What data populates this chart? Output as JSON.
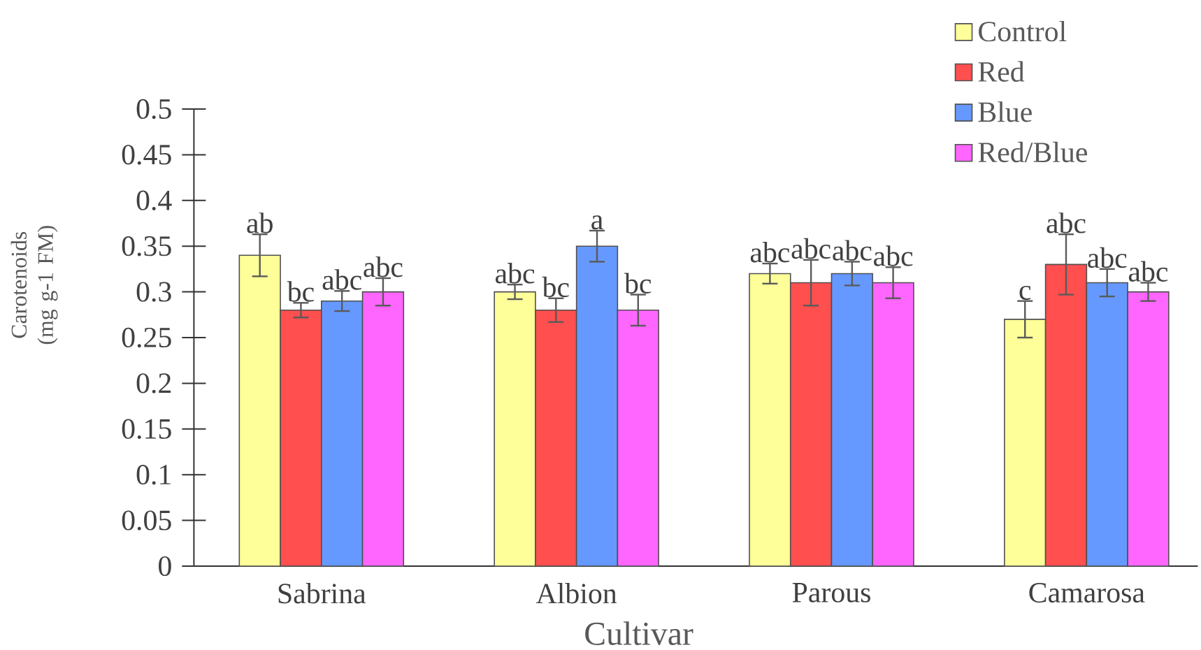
{
  "chart_data": {
    "type": "bar",
    "xlabel": "Cultivar",
    "ylabel": "Carotenoids (mg g-1 FM)",
    "categories": [
      "Sabrina",
      "Albion",
      "Parous",
      "Camarosa"
    ],
    "series": [
      {
        "name": "Control",
        "color": "#ffff99",
        "values": [
          0.34,
          0.3,
          0.32,
          0.27
        ],
        "errors": [
          0.023,
          0.008,
          0.011,
          0.02
        ],
        "value_labels": [
          "ab",
          "abc",
          "abc",
          "c"
        ]
      },
      {
        "name": "Red",
        "color": "#ff4f4f",
        "values": [
          0.28,
          0.28,
          0.31,
          0.33
        ],
        "errors": [
          0.008,
          0.013,
          0.025,
          0.033
        ],
        "value_labels": [
          "bc",
          "bc",
          "abc",
          "abc"
        ]
      },
      {
        "name": "Blue",
        "color": "#6699ff",
        "values": [
          0.29,
          0.35,
          0.32,
          0.31
        ],
        "errors": [
          0.011,
          0.017,
          0.013,
          0.015
        ],
        "value_labels": [
          "abc",
          "a",
          "abc",
          "abc"
        ]
      },
      {
        "name": "Red/Blue",
        "color": "#ff66ff",
        "values": [
          0.3,
          0.28,
          0.31,
          0.3
        ],
        "errors": [
          0.015,
          0.017,
          0.017,
          0.01
        ],
        "value_labels": [
          "abc",
          "bc",
          "abc",
          "abc"
        ]
      }
    ],
    "ylim": [
      0,
      0.5
    ],
    "yticks": [
      0,
      0.05,
      0.1,
      0.15,
      0.2,
      0.25,
      0.3,
      0.35,
      0.4,
      0.45,
      0.5
    ],
    "legend": "top right"
  }
}
